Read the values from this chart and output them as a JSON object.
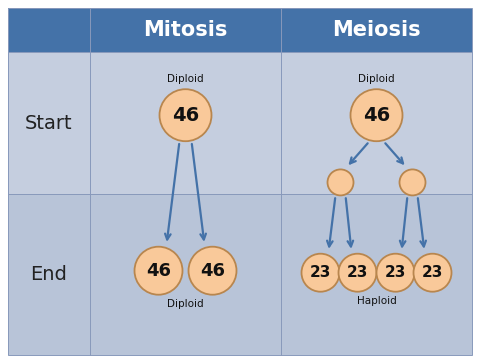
{
  "header_bg": "#4472A8",
  "header_text_color": "#FFFFFF",
  "row1_bg": "#C5CEDF",
  "row2_bg": "#B8C4D8",
  "outer_bg": "#FFFFFF",
  "circle_fill": "#F9C99A",
  "circle_edge": "#B8864E",
  "arrow_color": "#4472A8",
  "text_dark": "#111111",
  "row_label_color": "#222222",
  "col_headers": [
    "Mitosis",
    "Meiosis"
  ],
  "row_labels": [
    "Start",
    "End"
  ],
  "header_fontsize": 15,
  "row_label_fontsize": 13,
  "number_fontsize": 13,
  "small_label_fontsize": 7.5
}
